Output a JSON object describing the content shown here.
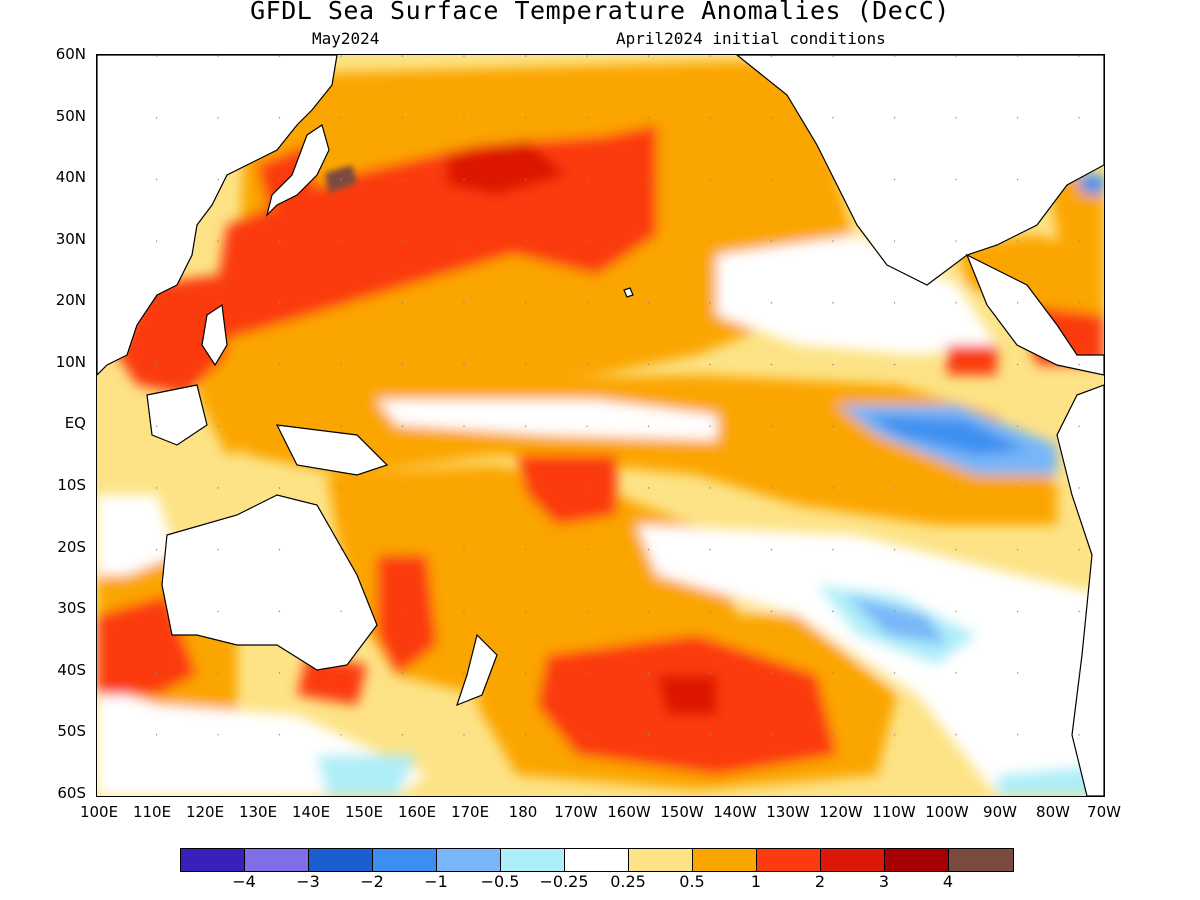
{
  "title": "GFDL Sea Surface Temperature Anomalies (DecC)",
  "subtitle_left": "May2024",
  "subtitle_right": "April2024 initial conditions",
  "y_labels": [
    "60N",
    "50N",
    "40N",
    "30N",
    "20N",
    "10N",
    "EQ",
    "10S",
    "20S",
    "30S",
    "40S",
    "50S",
    "60S"
  ],
  "x_labels": [
    "100E",
    "110E",
    "120E",
    "130E",
    "140E",
    "150E",
    "160E",
    "170E",
    "180",
    "170W",
    "160W",
    "150W",
    "140W",
    "130W",
    "120W",
    "110W",
    "100W",
    "90W",
    "80W",
    "70W"
  ],
  "colorbar": {
    "colors": [
      "#3a1fb8",
      "#7e6ee8",
      "#1a5ed0",
      "#3c8ff0",
      "#78b6f8",
      "#aeeef8",
      "#ffffff",
      "#fde386",
      "#fba500",
      "#fb3a10",
      "#dc1806",
      "#a60002",
      "#7a4c40"
    ],
    "labels": [
      "−4",
      "−3",
      "−2",
      "−1",
      "−0.5",
      "−0.25",
      "0.25",
      "0.5",
      "1",
      "2",
      "3",
      "4"
    ]
  },
  "map": {
    "region": "Pacific Ocean",
    "lat_range": [
      "60S",
      "60N"
    ],
    "lon_range": [
      "100E",
      "70W"
    ]
  }
}
